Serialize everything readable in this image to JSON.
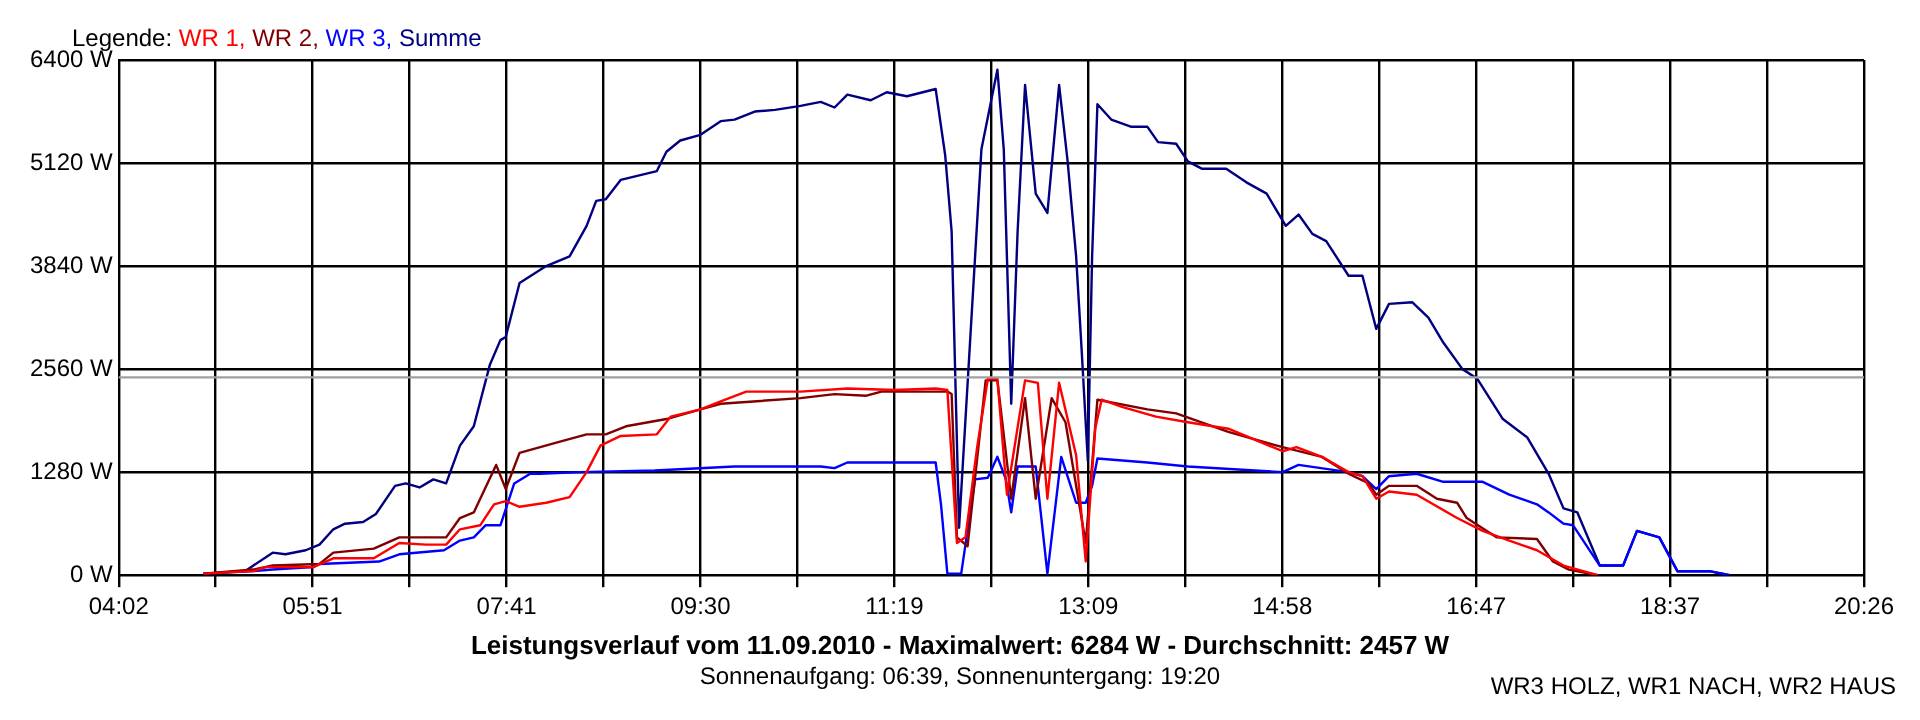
{
  "chart_data": {
    "type": "line",
    "title": "Leistungsverlauf vom 11.09.2010 - Maximalwert: 6284 W - Durchschnitt: 2457 W",
    "subtitle": "Sonnenaufgang: 06:39, Sonnenuntergang: 19:20",
    "annotations": [
      "WR3 HOLZ, WR1 NACH, WR2 HAUS"
    ],
    "legend_title": "Legende:",
    "legend": "top left",
    "grid": true,
    "xlim": [
      4.0333,
      20.4333
    ],
    "ylim": [
      0,
      6400
    ],
    "xticks": [
      {
        "value": 4.0333,
        "label": "04:02"
      },
      {
        "value": 4.9444,
        "label": null
      },
      {
        "value": 5.8556,
        "label": "05:51"
      },
      {
        "value": 6.7667,
        "label": null
      },
      {
        "value": 7.6778,
        "label": "07:41"
      },
      {
        "value": 8.5889,
        "label": null
      },
      {
        "value": 9.5,
        "label": "09:30"
      },
      {
        "value": 10.4111,
        "label": null
      },
      {
        "value": 11.3222,
        "label": "11:19"
      },
      {
        "value": 12.2333,
        "label": null
      },
      {
        "value": 13.1444,
        "label": "13:09"
      },
      {
        "value": 14.0556,
        "label": null
      },
      {
        "value": 14.9667,
        "label": "14:58"
      },
      {
        "value": 15.8778,
        "label": null
      },
      {
        "value": 16.7889,
        "label": "16:47"
      },
      {
        "value": 17.7,
        "label": null
      },
      {
        "value": 18.6111,
        "label": "18:37"
      },
      {
        "value": 19.5222,
        "label": null
      },
      {
        "value": 20.4333,
        "label": "20:26"
      }
    ],
    "yticks": [
      {
        "value": 0,
        "label": "0 W"
      },
      {
        "value": 1280,
        "label": "1280 W"
      },
      {
        "value": 2560,
        "label": "2560 W"
      },
      {
        "value": 3840,
        "label": "3840 W"
      },
      {
        "value": 5120,
        "label": "5120 W"
      },
      {
        "value": 6400,
        "label": "6400 W"
      }
    ],
    "ref_lines": [
      {
        "axis": "y",
        "value": 2457,
        "color": "#a0a0a0"
      }
    ],
    "series": [
      {
        "name": "WR 1,",
        "color": "#ff0000",
        "x": [
          4.83,
          5.3,
          5.41,
          5.86,
          6.05,
          6.43,
          6.67,
          6.92,
          7.11,
          7.24,
          7.43,
          7.56,
          7.67,
          7.8,
          8.05,
          8.27,
          8.43,
          8.56,
          8.75,
          9.09,
          9.22,
          9.5,
          9.69,
          9.93,
          10.44,
          10.88,
          11.33,
          11.71,
          11.82,
          11.91,
          11.99,
          12.1,
          12.2,
          12.29,
          12.38,
          12.55,
          12.67,
          12.76,
          12.87,
          13.03,
          13.12,
          13.21,
          13.27,
          13.46,
          13.78,
          14.08,
          14.46,
          14.97,
          15.1,
          15.34,
          15.59,
          15.72,
          15.85,
          15.97,
          16.23,
          16.61,
          16.85,
          17.1,
          17.36,
          17.61,
          17.93
        ],
        "values": [
          20,
          50,
          100,
          100,
          210,
          210,
          400,
          380,
          380,
          570,
          620,
          880,
          920,
          850,
          900,
          970,
          1280,
          1610,
          1730,
          1750,
          1970,
          2060,
          2160,
          2280,
          2280,
          2320,
          2300,
          2320,
          2300,
          400,
          470,
          1590,
          2440,
          2440,
          1000,
          2420,
          2390,
          950,
          2390,
          1490,
          170,
          1830,
          2180,
          2090,
          1970,
          1900,
          1820,
          1540,
          1590,
          1470,
          1280,
          1230,
          950,
          1040,
          1000,
          710,
          550,
          430,
          310,
          120,
          0
        ]
      },
      {
        "name": "WR 2,",
        "color": "#800000",
        "x": [
          4.83,
          5.3,
          5.48,
          5.92,
          6.05,
          6.43,
          6.67,
          7.11,
          7.24,
          7.37,
          7.58,
          7.67,
          7.8,
          8.18,
          8.43,
          8.61,
          8.8,
          9.18,
          9.5,
          9.69,
          10.44,
          10.76,
          11.06,
          11.2,
          11.82,
          11.86,
          11.91,
          12.01,
          12.18,
          12.29,
          12.42,
          12.55,
          12.65,
          12.8,
          12.93,
          13.12,
          13.23,
          13.7,
          13.97,
          14.46,
          14.97,
          15.34,
          15.59,
          15.78,
          15.85,
          15.97,
          16.23,
          16.42,
          16.61,
          16.7,
          16.98,
          17.36,
          17.51,
          17.66,
          17.93
        ],
        "values": [
          20,
          70,
          120,
          140,
          280,
          330,
          470,
          470,
          710,
          780,
          1370,
          1070,
          1520,
          1660,
          1750,
          1750,
          1850,
          1940,
          2060,
          2130,
          2200,
          2250,
          2230,
          2280,
          2280,
          2250,
          470,
          360,
          2420,
          2420,
          950,
          2200,
          950,
          2200,
          1900,
          400,
          2180,
          2060,
          2010,
          1780,
          1590,
          1470,
          1260,
          1140,
          1000,
          1110,
          1110,
          950,
          900,
          710,
          470,
          450,
          170,
          70,
          0
        ]
      },
      {
        "name": "WR 3,",
        "color": "#0000ff",
        "x": [
          4.83,
          5.3,
          5.48,
          5.86,
          5.92,
          6.48,
          6.67,
          7.09,
          7.24,
          7.37,
          7.48,
          7.62,
          7.75,
          7.9,
          7.99,
          8.37,
          9.07,
          9.82,
          10.63,
          10.76,
          10.88,
          11.71,
          11.76,
          11.82,
          11.95,
          12.08,
          12.2,
          12.29,
          12.37,
          12.42,
          12.48,
          12.65,
          12.76,
          12.89,
          13.03,
          13.12,
          13.18,
          13.23,
          13.7,
          14.08,
          14.97,
          15.12,
          15.59,
          15.72,
          15.85,
          15.97,
          16.23,
          16.48,
          16.85,
          17.1,
          17.36,
          17.47,
          17.61,
          17.7,
          17.95,
          18.17,
          18.3,
          18.51,
          18.68,
          18.98,
          19.17
        ],
        "values": [
          20,
          50,
          70,
          100,
          140,
          170,
          260,
          310,
          430,
          470,
          620,
          620,
          1140,
          1260,
          1260,
          1280,
          1300,
          1350,
          1350,
          1330,
          1400,
          1400,
          880,
          20,
          20,
          1190,
          1210,
          1470,
          1190,
          780,
          1350,
          1350,
          20,
          1470,
          900,
          900,
          1110,
          1450,
          1400,
          1350,
          1280,
          1370,
          1280,
          1230,
          1070,
          1230,
          1260,
          1160,
          1160,
          1000,
          880,
          780,
          640,
          620,
          120,
          120,
          550,
          470,
          50,
          50,
          0
        ]
      },
      {
        "name": "Summe",
        "color": "#000080",
        "x": [
          4.83,
          5.22,
          5.48,
          5.6,
          5.79,
          5.92,
          6.05,
          6.16,
          6.33,
          6.45,
          6.63,
          6.73,
          6.86,
          6.99,
          7.11,
          7.24,
          7.37,
          7.52,
          7.62,
          7.67,
          7.8,
          8.05,
          8.27,
          8.43,
          8.52,
          8.61,
          8.75,
          9.09,
          9.18,
          9.31,
          9.5,
          9.69,
          9.82,
          10.01,
          10.2,
          10.44,
          10.63,
          10.76,
          10.88,
          11.1,
          11.25,
          11.44,
          11.71,
          11.8,
          11.86,
          11.93,
          12.14,
          12.29,
          12.35,
          12.42,
          12.48,
          12.55,
          12.65,
          12.76,
          12.87,
          12.95,
          13.03,
          13.08,
          13.14,
          13.18,
          13.23,
          13.36,
          13.55,
          13.7,
          13.8,
          13.97,
          14.08,
          14.21,
          14.44,
          14.63,
          14.82,
          15.0,
          15.12,
          15.25,
          15.38,
          15.59,
          15.72,
          15.85,
          15.97,
          16.19,
          16.34,
          16.48,
          16.66,
          16.8,
          17.04,
          17.27,
          17.47,
          17.61,
          17.74,
          17.95,
          18.17,
          18.3,
          18.51,
          18.68,
          18.98,
          19.17
        ],
        "values": [
          20,
          50,
          280,
          260,
          310,
          380,
          570,
          640,
          660,
          760,
          1110,
          1140,
          1090,
          1190,
          1140,
          1610,
          1850,
          2610,
          2920,
          2960,
          3630,
          3840,
          3960,
          4340,
          4650,
          4670,
          4910,
          5020,
          5260,
          5400,
          5470,
          5640,
          5660,
          5760,
          5780,
          5830,
          5880,
          5810,
          5970,
          5900,
          6000,
          5950,
          6040,
          5210,
          4270,
          590,
          5290,
          6280,
          5290,
          2130,
          4270,
          6090,
          4740,
          4500,
          6090,
          5140,
          3960,
          2840,
          1420,
          3960,
          5850,
          5660,
          5570,
          5570,
          5380,
          5360,
          5140,
          5050,
          5050,
          4880,
          4740,
          4340,
          4480,
          4240,
          4150,
          3720,
          3720,
          3060,
          3370,
          3390,
          3200,
          2890,
          2560,
          2440,
          1940,
          1710,
          1260,
          830,
          780,
          120,
          120,
          550,
          470,
          50,
          50,
          0
        ]
      }
    ]
  }
}
